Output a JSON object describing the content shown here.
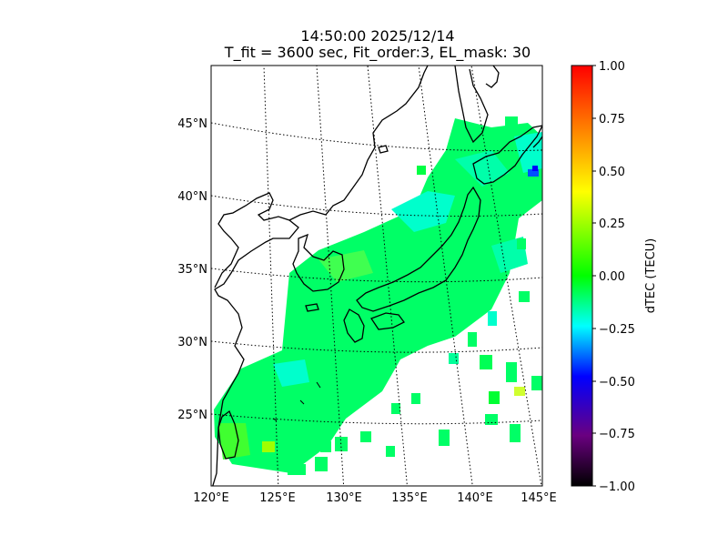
{
  "title": {
    "line1": "14:50:00 2025/12/14",
    "line2": "T_fit = 3600 sec, Fit_order:3, EL_mask: 30"
  },
  "map": {
    "lat_ticks": [
      "45°N",
      "40°N",
      "35°N",
      "30°N",
      "25°N"
    ],
    "lon_ticks": [
      "120°E",
      "125°E",
      "130°E",
      "135°E",
      "140°E",
      "145°E"
    ]
  },
  "colorbar": {
    "label": "dTEC (TECU)",
    "ticks": [
      "1.00",
      "0.75",
      "0.50",
      "0.25",
      "0.00",
      "−0.25",
      "−0.50",
      "−0.75",
      "−1.00"
    ],
    "range": [
      -1.0,
      1.0
    ],
    "colormap": [
      "#000000",
      "#6a0080",
      "#0000ff",
      "#00ffff",
      "#00ff00",
      "#ffff00",
      "#ff8000",
      "#ff0000"
    ]
  },
  "colors": {
    "land_outline": "#000000",
    "grid": "#000000",
    "dtec_dominant": "#00ff66"
  }
}
